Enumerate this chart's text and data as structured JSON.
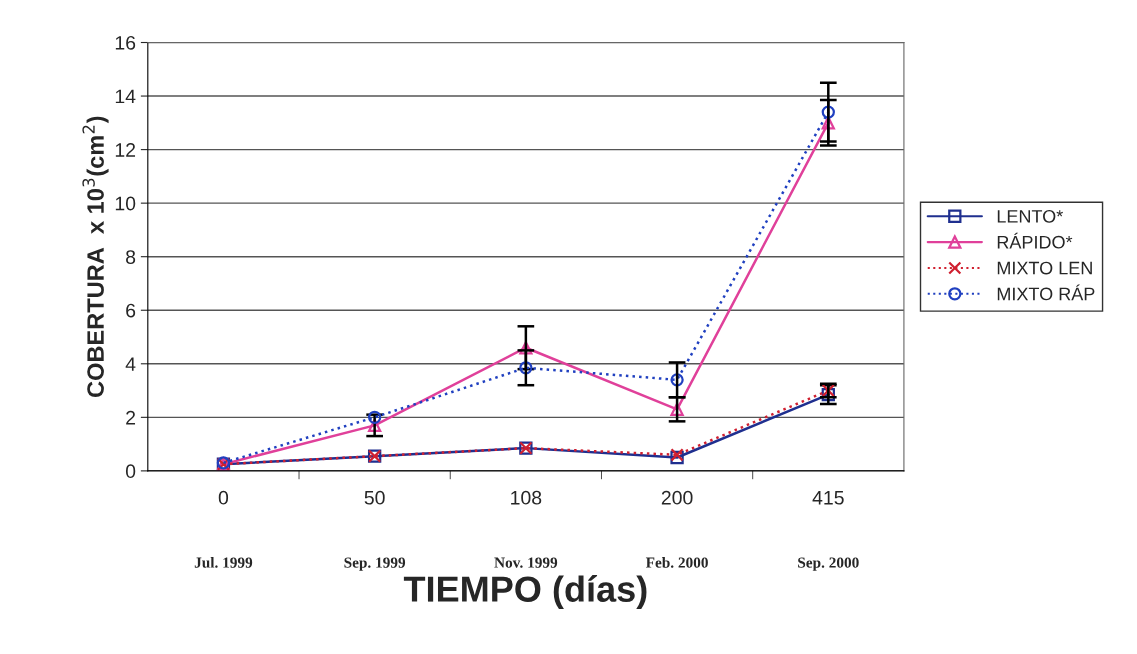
{
  "chart_data": {
    "type": "line",
    "xlabel": "TIEMPO (días)",
    "ylabel": "COBERTURA  x 10$^{3}$(cm$^{2}$)",
    "categories": [
      "0",
      "50",
      "108",
      "200",
      "415"
    ],
    "series": [
      {
        "name": "LENTO*",
        "color": "#1f2f8f",
        "marker": "square",
        "line_style": "solid",
        "values": [
          0.25,
          0.55,
          0.85,
          0.5,
          2.85
        ],
        "errors": [
          null,
          null,
          null,
          null,
          0.35
        ]
      },
      {
        "name": "RÁPIDO*",
        "color": "#e0409a",
        "marker": "triangle",
        "line_style": "solid",
        "values": [
          0.25,
          1.7,
          4.6,
          2.3,
          13.0
        ],
        "errors": [
          null,
          0.4,
          0.8,
          0.45,
          0.85
        ]
      },
      {
        "name": "MIXTO LEN",
        "color": "#d02030",
        "marker": "cross",
        "line_style": "dotted",
        "values": [
          0.25,
          0.55,
          0.85,
          0.6,
          3.0
        ],
        "errors": [
          null,
          null,
          null,
          null,
          0.25
        ]
      },
      {
        "name": "MIXTO RÁP",
        "color": "#2040c0",
        "marker": "circle",
        "line_style": "dotted",
        "values": [
          0.3,
          2.0,
          3.85,
          3.4,
          13.4
        ],
        "errors": [
          null,
          null,
          0.65,
          0.65,
          1.1
        ]
      }
    ],
    "ylim": [
      0,
      16
    ],
    "yticks": [
      0,
      2,
      4,
      6,
      8,
      10,
      12,
      14,
      16
    ],
    "grid": "y",
    "legend": "right",
    "annotations": [
      "Jul. 1999",
      "Sep. 1999",
      "Nov. 1999",
      "Feb. 2000",
      "Sep. 2000"
    ]
  }
}
